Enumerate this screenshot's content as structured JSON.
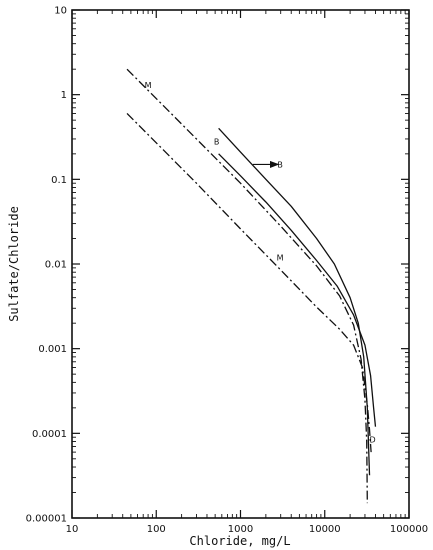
{
  "chart_data": {
    "type": "line",
    "title": "",
    "xlabel": "Chloride, mg/L",
    "ylabel": "Sulfate/Chloride",
    "xscale": "log",
    "yscale": "log",
    "xlim": [
      10,
      100000
    ],
    "ylim": [
      1e-05,
      10
    ],
    "grid": false,
    "legend": "none",
    "x_ticks": [
      {
        "value": 10,
        "label": "10"
      },
      {
        "value": 100,
        "label": "100"
      },
      {
        "value": 1000,
        "label": "1000"
      },
      {
        "value": 10000,
        "label": "10000"
      },
      {
        "value": 100000,
        "label": "100000"
      }
    ],
    "y_ticks": [
      {
        "value": 10,
        "label": "10"
      },
      {
        "value": 1,
        "label": "1"
      },
      {
        "value": 0.1,
        "label": "0.1"
      },
      {
        "value": 0.01,
        "label": "0.01"
      },
      {
        "value": 0.001,
        "label": "0.001"
      },
      {
        "value": 0.0001,
        "label": "0.0001"
      },
      {
        "value": 1e-05,
        "label": "0.00001"
      }
    ],
    "series": [
      {
        "style": "dashdot",
        "x": [
          45,
          100,
          300,
          1000,
          3000,
          8000,
          15000,
          22000,
          27000,
          30000,
          31500,
          32000
        ],
        "y": [
          2.0,
          0.9,
          0.3,
          0.09,
          0.028,
          0.0095,
          0.0042,
          0.0019,
          0.00075,
          0.00025,
          8e-05,
          1.5e-05
        ]
      },
      {
        "style": "dashdot",
        "x": [
          45,
          100,
          300,
          1000,
          3000,
          8000,
          15000,
          22000,
          28000,
          32000,
          34000,
          35500
        ],
        "y": [
          0.6,
          0.27,
          0.09,
          0.026,
          0.0085,
          0.0031,
          0.0017,
          0.0011,
          0.0006,
          0.00022,
          0.00011,
          6e-05
        ]
      },
      {
        "style": "solid",
        "x": [
          550,
          1000,
          2000,
          4000,
          8000,
          13000,
          20000,
          25000,
          29000,
          32000,
          34000
        ],
        "y": [
          0.4,
          0.21,
          0.1,
          0.048,
          0.02,
          0.01,
          0.004,
          0.002,
          0.0008,
          0.0002,
          3.2e-05
        ]
      },
      {
        "style": "solid",
        "x": [
          550,
          1000,
          2000,
          4000,
          8000,
          14000,
          22000,
          30000,
          35000,
          38000,
          40000
        ],
        "y": [
          0.2,
          0.11,
          0.054,
          0.025,
          0.011,
          0.0055,
          0.0025,
          0.0011,
          0.00048,
          0.0002,
          0.00012
        ]
      }
    ],
    "annotations": [
      {
        "text": "M",
        "x": 80,
        "y": 1.3
      },
      {
        "text": "B",
        "x": 520,
        "y": 0.28
      },
      {
        "text": "B",
        "x": 2950,
        "y": 0.15
      },
      {
        "text": "M",
        "x": 2950,
        "y": 0.012
      },
      {
        "text": "D",
        "x": 37000,
        "y": 8.5e-05
      }
    ],
    "arrow": {
      "x_start": 1400,
      "x_end": 2800,
      "y": 0.15
    }
  }
}
